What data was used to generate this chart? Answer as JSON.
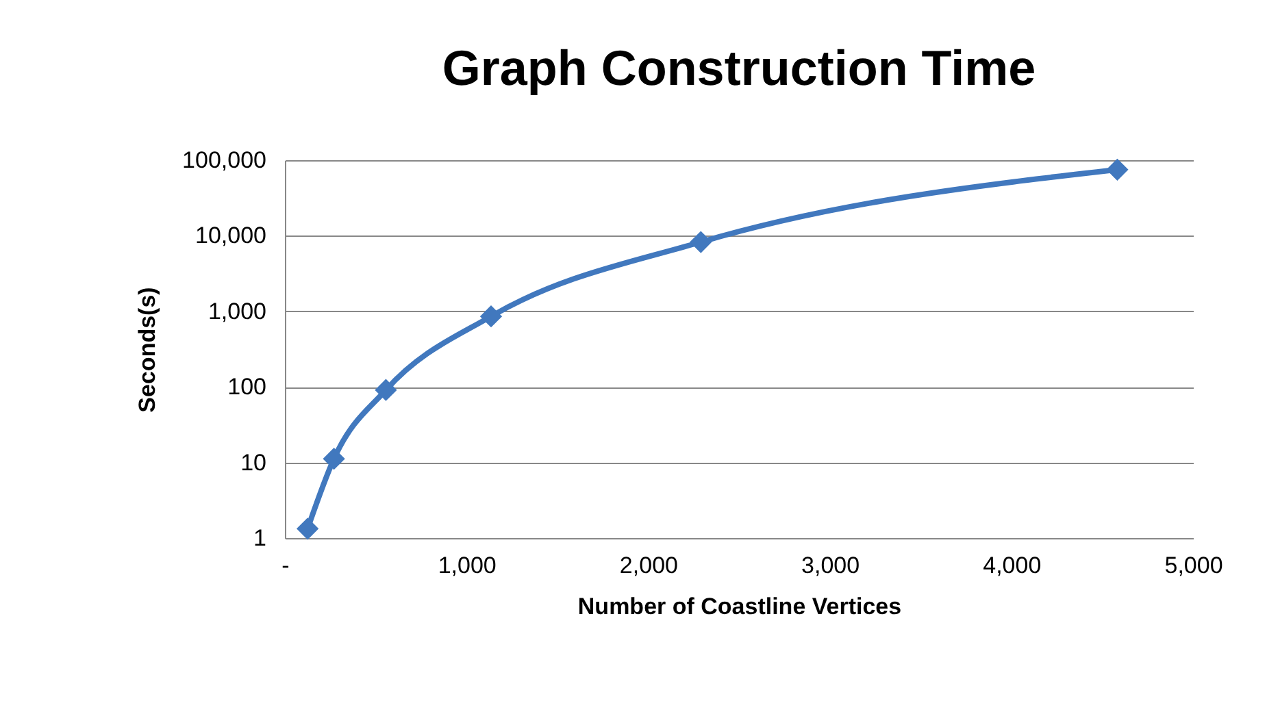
{
  "chart_data": {
    "type": "line",
    "title": "Graph Construction Time",
    "xlabel": "Number of Coastline Vertices",
    "ylabel": "Seconds(s)",
    "x": [
      125,
      270,
      556,
      1135,
      2290,
      4583
    ],
    "series": [
      {
        "color": "#4178be",
        "values": [
          1.33,
          11.2,
          91,
          858,
          8260,
          75000
        ]
      }
    ],
    "xlim": [
      0,
      5000
    ],
    "xticks": [
      {
        "value": 0,
        "label": "-"
      },
      {
        "value": 1000,
        "label": "1,000"
      },
      {
        "value": 2000,
        "label": "2,000"
      },
      {
        "value": 3000,
        "label": "3,000"
      },
      {
        "value": 4000,
        "label": "4,000"
      },
      {
        "value": 5000,
        "label": "5,000"
      }
    ],
    "ylim": [
      1,
      100000
    ],
    "yticks": [
      1,
      10,
      100,
      {
        "value": 1000,
        "label": "1,000"
      },
      {
        "value": 10000,
        "label": "10,000"
      },
      {
        "value": 100000,
        "label": "100,000"
      }
    ],
    "log": "y",
    "grid": "y",
    "marker": "diamond",
    "line_style": "solid"
  }
}
